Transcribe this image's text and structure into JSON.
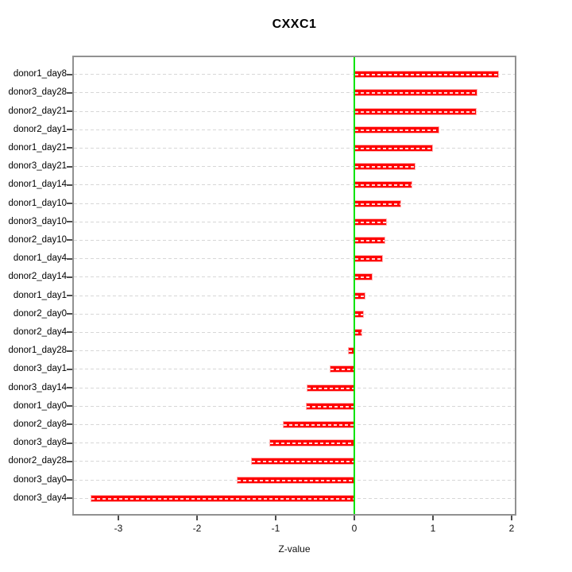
{
  "chart_data": {
    "type": "bar",
    "orientation": "horizontal",
    "title": "CXXC1",
    "xlabel": "Z-value",
    "categories": [
      "donor1_day8",
      "donor3_day28",
      "donor2_day21",
      "donor2_day1",
      "donor1_day21",
      "donor3_day21",
      "donor1_day14",
      "donor1_day10",
      "donor3_day10",
      "donor2_day10",
      "donor1_day4",
      "donor2_day14",
      "donor1_day1",
      "donor2_day0",
      "donor2_day4",
      "donor1_day28",
      "donor3_day1",
      "donor3_day14",
      "donor1_day0",
      "donor2_day8",
      "donor3_day8",
      "donor2_day28",
      "donor3_day0",
      "donor3_day4"
    ],
    "values": [
      1.84,
      1.57,
      1.56,
      1.08,
      1.0,
      0.78,
      0.74,
      0.6,
      0.41,
      0.39,
      0.36,
      0.23,
      0.14,
      0.12,
      0.1,
      -0.08,
      -0.31,
      -0.61,
      -0.62,
      -0.91,
      -1.08,
      -1.31,
      -1.49,
      -3.35
    ],
    "xticks": [
      -3,
      -2,
      -1,
      0,
      1,
      2
    ],
    "xlim": [
      -3.57,
      2.05
    ],
    "grid": true,
    "legend": "none",
    "bar_color": "#ff0000",
    "bar_border_color": "#ffb0b0",
    "zero_line_color": "#00e400",
    "gridline_color": "#d7d7d7"
  }
}
